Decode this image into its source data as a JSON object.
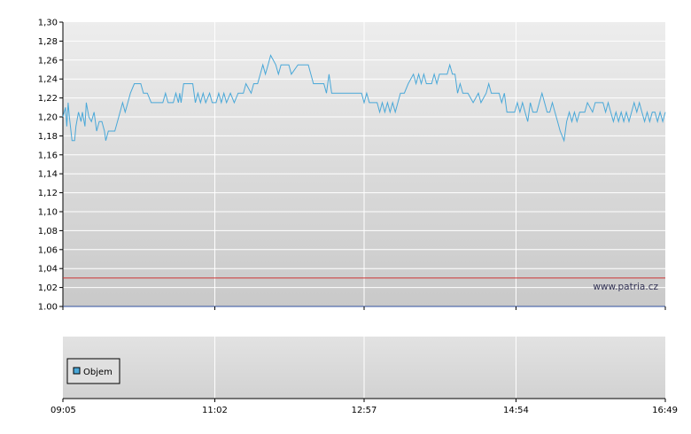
{
  "watermark": "www.patria.cz",
  "chart_data": {
    "type": "line",
    "title": "",
    "xlabel": "",
    "ylabel": "",
    "ylim": [
      1.0,
      1.3
    ],
    "y_ticks": [
      "1,30",
      "1,28",
      "1,26",
      "1,24",
      "1,22",
      "1,20",
      "1,18",
      "1,16",
      "1,14",
      "1,12",
      "1,10",
      "1,08",
      "1,06",
      "1,04",
      "1,02",
      "1.00"
    ],
    "x_ticks": [
      "09:05",
      "11:02",
      "12:57",
      "14:54",
      "16:49"
    ],
    "reference_line": {
      "value": 1.03,
      "color": "#cc3333"
    },
    "series": [
      {
        "color": "#4aa8d8",
        "points": [
          [
            "09:05",
            1.2
          ],
          [
            "09:07",
            1.21
          ],
          [
            "09:08",
            1.19
          ],
          [
            "09:09",
            1.215
          ],
          [
            "09:10",
            1.2
          ],
          [
            "09:12",
            1.175
          ],
          [
            "09:14",
            1.175
          ],
          [
            "09:15",
            1.19
          ],
          [
            "09:17",
            1.205
          ],
          [
            "09:19",
            1.195
          ],
          [
            "09:20",
            1.205
          ],
          [
            "09:22",
            1.19
          ],
          [
            "09:23",
            1.215
          ],
          [
            "09:25",
            1.2
          ],
          [
            "09:27",
            1.195
          ],
          [
            "09:29",
            1.205
          ],
          [
            "09:31",
            1.185
          ],
          [
            "09:33",
            1.195
          ],
          [
            "09:35",
            1.195
          ],
          [
            "09:37",
            1.185
          ],
          [
            "09:38",
            1.175
          ],
          [
            "09:40",
            1.185
          ],
          [
            "09:45",
            1.185
          ],
          [
            "09:47",
            1.195
          ],
          [
            "09:49",
            1.205
          ],
          [
            "09:51",
            1.215
          ],
          [
            "09:53",
            1.205
          ],
          [
            "09:55",
            1.215
          ],
          [
            "09:57",
            1.225
          ],
          [
            "10:00",
            1.235
          ],
          [
            "10:05",
            1.235
          ],
          [
            "10:07",
            1.225
          ],
          [
            "10:10",
            1.225
          ],
          [
            "10:13",
            1.215
          ],
          [
            "10:22",
            1.215
          ],
          [
            "10:24",
            1.225
          ],
          [
            "10:26",
            1.215
          ],
          [
            "10:30",
            1.215
          ],
          [
            "10:32",
            1.225
          ],
          [
            "10:34",
            1.215
          ],
          [
            "10:35",
            1.225
          ],
          [
            "10:36",
            1.215
          ],
          [
            "10:38",
            1.235
          ],
          [
            "10:45",
            1.235
          ],
          [
            "10:47",
            1.215
          ],
          [
            "10:49",
            1.225
          ],
          [
            "10:51",
            1.215
          ],
          [
            "10:53",
            1.225
          ],
          [
            "10:55",
            1.215
          ],
          [
            "10:58",
            1.225
          ],
          [
            "11:00",
            1.215
          ],
          [
            "11:03",
            1.215
          ],
          [
            "11:05",
            1.225
          ],
          [
            "11:07",
            1.215
          ],
          [
            "11:09",
            1.225
          ],
          [
            "11:11",
            1.215
          ],
          [
            "11:14",
            1.225
          ],
          [
            "11:17",
            1.215
          ],
          [
            "11:20",
            1.225
          ],
          [
            "11:24",
            1.225
          ],
          [
            "11:26",
            1.235
          ],
          [
            "11:30",
            1.225
          ],
          [
            "11:32",
            1.235
          ],
          [
            "11:35",
            1.235
          ],
          [
            "11:37",
            1.245
          ],
          [
            "11:39",
            1.255
          ],
          [
            "11:41",
            1.245
          ],
          [
            "11:43",
            1.255
          ],
          [
            "11:45",
            1.265
          ],
          [
            "11:47",
            1.26
          ],
          [
            "11:49",
            1.255
          ],
          [
            "11:51",
            1.245
          ],
          [
            "11:53",
            1.255
          ],
          [
            "11:59",
            1.255
          ],
          [
            "12:01",
            1.245
          ],
          [
            "12:06",
            1.255
          ],
          [
            "12:14",
            1.255
          ],
          [
            "12:16",
            1.245
          ],
          [
            "12:18",
            1.235
          ],
          [
            "12:26",
            1.235
          ],
          [
            "12:28",
            1.225
          ],
          [
            "12:30",
            1.245
          ],
          [
            "12:32",
            1.225
          ],
          [
            "12:55",
            1.225
          ],
          [
            "12:57",
            1.215
          ],
          [
            "12:59",
            1.225
          ],
          [
            "13:01",
            1.215
          ],
          [
            "13:07",
            1.215
          ],
          [
            "13:09",
            1.205
          ],
          [
            "13:11",
            1.215
          ],
          [
            "13:13",
            1.205
          ],
          [
            "13:15",
            1.215
          ],
          [
            "13:17",
            1.205
          ],
          [
            "13:19",
            1.215
          ],
          [
            "13:21",
            1.205
          ],
          [
            "13:23",
            1.215
          ],
          [
            "13:25",
            1.225
          ],
          [
            "13:28",
            1.225
          ],
          [
            "13:31",
            1.235
          ],
          [
            "13:35",
            1.245
          ],
          [
            "13:37",
            1.235
          ],
          [
            "13:39",
            1.245
          ],
          [
            "13:41",
            1.235
          ],
          [
            "13:43",
            1.245
          ],
          [
            "13:45",
            1.235
          ],
          [
            "13:49",
            1.235
          ],
          [
            "13:51",
            1.245
          ],
          [
            "13:53",
            1.235
          ],
          [
            "13:55",
            1.245
          ],
          [
            "14:01",
            1.245
          ],
          [
            "14:03",
            1.255
          ],
          [
            "14:05",
            1.245
          ],
          [
            "14:07",
            1.245
          ],
          [
            "14:09",
            1.225
          ],
          [
            "14:11",
            1.235
          ],
          [
            "14:13",
            1.225
          ],
          [
            "14:17",
            1.225
          ],
          [
            "14:21",
            1.215
          ],
          [
            "14:25",
            1.225
          ],
          [
            "14:27",
            1.215
          ],
          [
            "14:31",
            1.225
          ],
          [
            "14:33",
            1.235
          ],
          [
            "14:35",
            1.225
          ],
          [
            "14:41",
            1.225
          ],
          [
            "14:43",
            1.215
          ],
          [
            "14:45",
            1.225
          ],
          [
            "14:47",
            1.205
          ],
          [
            "14:53",
            1.205
          ],
          [
            "14:55",
            1.215
          ],
          [
            "14:57",
            1.205
          ],
          [
            "14:59",
            1.215
          ],
          [
            "15:01",
            1.205
          ],
          [
            "15:03",
            1.195
          ],
          [
            "15:05",
            1.215
          ],
          [
            "15:07",
            1.205
          ],
          [
            "15:10",
            1.205
          ],
          [
            "15:12",
            1.215
          ],
          [
            "15:14",
            1.225
          ],
          [
            "15:16",
            1.215
          ],
          [
            "15:18",
            1.205
          ],
          [
            "15:20",
            1.205
          ],
          [
            "15:22",
            1.215
          ],
          [
            "15:24",
            1.205
          ],
          [
            "15:26",
            1.195
          ],
          [
            "15:28",
            1.185
          ],
          [
            "15:31",
            1.175
          ],
          [
            "15:33",
            1.195
          ],
          [
            "15:35",
            1.205
          ],
          [
            "15:37",
            1.195
          ],
          [
            "15:39",
            1.205
          ],
          [
            "15:41",
            1.195
          ],
          [
            "15:43",
            1.205
          ],
          [
            "15:47",
            1.205
          ],
          [
            "15:49",
            1.215
          ],
          [
            "15:53",
            1.205
          ],
          [
            "15:55",
            1.215
          ],
          [
            "16:01",
            1.215
          ],
          [
            "16:03",
            1.205
          ],
          [
            "16:05",
            1.215
          ],
          [
            "16:07",
            1.205
          ],
          [
            "16:09",
            1.195
          ],
          [
            "16:11",
            1.205
          ],
          [
            "16:13",
            1.195
          ],
          [
            "16:15",
            1.205
          ],
          [
            "16:17",
            1.195
          ],
          [
            "16:19",
            1.205
          ],
          [
            "16:21",
            1.195
          ],
          [
            "16:23",
            1.205
          ],
          [
            "16:25",
            1.215
          ],
          [
            "16:27",
            1.205
          ],
          [
            "16:29",
            1.215
          ],
          [
            "16:31",
            1.205
          ],
          [
            "16:33",
            1.195
          ],
          [
            "16:35",
            1.205
          ],
          [
            "16:37",
            1.195
          ],
          [
            "16:39",
            1.205
          ],
          [
            "16:41",
            1.205
          ],
          [
            "16:43",
            1.195
          ],
          [
            "16:45",
            1.205
          ],
          [
            "16:47",
            1.195
          ],
          [
            "16:49",
            1.205
          ]
        ]
      }
    ],
    "volume_panel": {
      "legend": "Objem",
      "legend_color": "#4aa8d8"
    }
  }
}
